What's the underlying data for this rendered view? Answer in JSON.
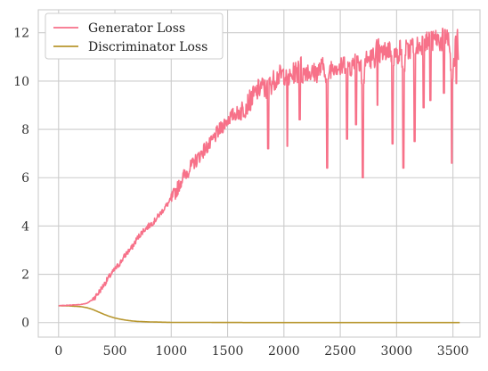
{
  "chart_data": {
    "type": "line",
    "title": "",
    "xlabel": "",
    "ylabel": "",
    "xlim": [
      -180,
      3740
    ],
    "ylim": [
      -0.6,
      12.95
    ],
    "xticks": [
      0,
      500,
      1000,
      1500,
      2000,
      2500,
      3000,
      3500
    ],
    "yticks": [
      0,
      2,
      4,
      6,
      8,
      10,
      12
    ],
    "xtick_labels": [
      "0",
      "500",
      "1000",
      "1500",
      "2000",
      "2500",
      "3000",
      "3500"
    ],
    "ytick_labels": [
      "0",
      "2",
      "4",
      "6",
      "8",
      "10",
      "12"
    ],
    "grid": true,
    "legend": "top-left",
    "series": [
      {
        "name": "Generator Loss",
        "color": "#f77189",
        "x": [
          0,
          100,
          200,
          250,
          300,
          350,
          400,
          450,
          500,
          550,
          600,
          650,
          700,
          750,
          800,
          850,
          900,
          950,
          1000,
          1050,
          1100,
          1150,
          1200,
          1250,
          1300,
          1350,
          1400,
          1450,
          1500,
          1550,
          1600,
          1650,
          1700,
          1750,
          1800,
          1850,
          1900,
          1950,
          2000,
          2050,
          2100,
          2150,
          2200,
          2250,
          2300,
          2350,
          2400,
          2450,
          2500,
          2550,
          2600,
          2650,
          2700,
          2750,
          2800,
          2850,
          2900,
          2950,
          3000,
          3050,
          3100,
          3150,
          3200,
          3250,
          3300,
          3350,
          3400,
          3450,
          3500,
          3550
        ],
        "values": [
          0.7,
          0.72,
          0.75,
          0.8,
          0.95,
          1.2,
          1.55,
          1.9,
          2.2,
          2.5,
          2.85,
          3.1,
          3.5,
          3.8,
          4.0,
          4.2,
          4.5,
          4.8,
          5.1,
          5.5,
          6.0,
          6.3,
          6.6,
          6.9,
          7.2,
          7.4,
          7.8,
          8.1,
          8.4,
          8.6,
          8.7,
          8.9,
          9.2,
          9.5,
          9.8,
          9.6,
          10.0,
          10.2,
          10.3,
          10.1,
          10.4,
          10.2,
          10.5,
          10.3,
          10.4,
          10.6,
          10.5,
          10.7,
          10.5,
          10.8,
          10.6,
          10.9,
          10.8,
          10.9,
          11.0,
          11.1,
          11.2,
          11.4,
          11.0,
          11.5,
          11.2,
          11.6,
          11.4,
          11.7,
          11.5,
          11.8,
          11.6,
          11.9,
          10.5,
          11.2
        ],
        "dips": [
          [
            1860,
            7.2
          ],
          [
            2030,
            7.3
          ],
          [
            2140,
            8.4
          ],
          [
            2385,
            6.4
          ],
          [
            2560,
            7.6
          ],
          [
            2640,
            8.2
          ],
          [
            2700,
            6.0
          ],
          [
            2830,
            9.0
          ],
          [
            2965,
            7.4
          ],
          [
            3060,
            6.4
          ],
          [
            3160,
            7.5
          ],
          [
            3240,
            8.9
          ],
          [
            3300,
            9.2
          ],
          [
            3420,
            9.5
          ],
          [
            3490,
            6.6
          ],
          [
            3530,
            9.9
          ]
        ]
      },
      {
        "name": "Discriminator Loss",
        "color": "#b8972f",
        "x": [
          0,
          100,
          200,
          250,
          300,
          350,
          400,
          450,
          500,
          550,
          600,
          650,
          700,
          800,
          900,
          1000,
          1200,
          1500,
          2000,
          2500,
          3000,
          3560
        ],
        "values": [
          0.7,
          0.69,
          0.66,
          0.62,
          0.55,
          0.45,
          0.35,
          0.26,
          0.19,
          0.14,
          0.1,
          0.07,
          0.05,
          0.03,
          0.02,
          0.01,
          0.01,
          0.005,
          0.0,
          0.0,
          0.0,
          0.0
        ]
      }
    ]
  }
}
